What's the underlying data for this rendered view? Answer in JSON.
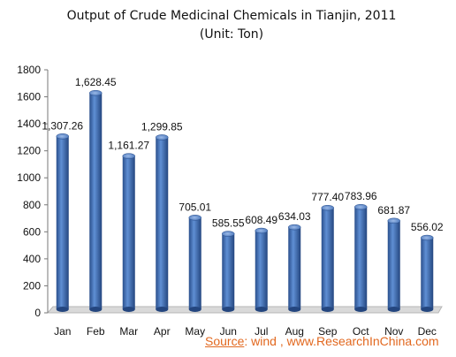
{
  "chart_data": {
    "type": "bar",
    "title": "Output of Crude Medicinal Chemicals in Tianjin, 2011",
    "subtitle": "(Unit: Ton)",
    "categories": [
      "Jan",
      "Feb",
      "Mar",
      "Apr",
      "May",
      "Jun",
      "Jul",
      "Aug",
      "Sep",
      "Oct",
      "Nov",
      "Dec"
    ],
    "values": [
      1307.26,
      1628.45,
      1161.27,
      1299.85,
      705.01,
      585.55,
      608.49,
      634.03,
      777.4,
      783.96,
      681.87,
      556.02
    ],
    "data_labels": [
      "1,307.26",
      "1,628.45",
      "1,161.27",
      "1,299.85",
      "705.01",
      "585.55",
      "608.49",
      "634.03",
      "777.40",
      "783.96",
      "681.87",
      "556.02"
    ],
    "ylim": [
      0,
      1800
    ],
    "yticks": [
      "0",
      "200",
      "400",
      "600",
      "800",
      "1000",
      "1200",
      "1400",
      "1600",
      "1800"
    ],
    "xlabel": "",
    "ylabel": "",
    "grid": false,
    "legend": "none",
    "bar_color": "#3f6fb6"
  },
  "source": {
    "prefix": "Source",
    "text": ": wind , www.ResearchInChina.com",
    "color": "#e2681f"
  }
}
